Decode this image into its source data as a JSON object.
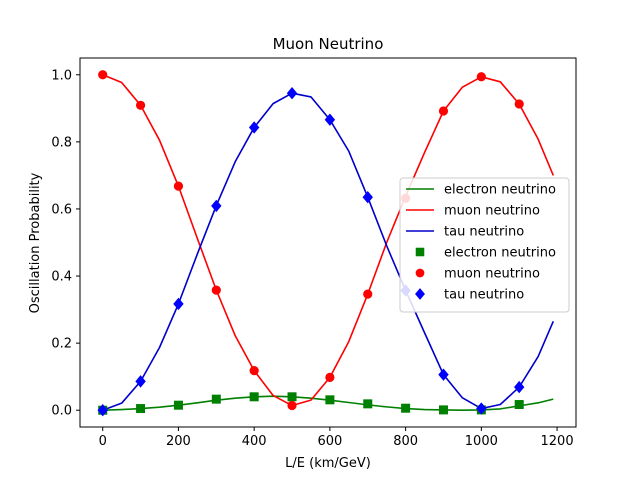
{
  "chart_data": {
    "type": "line",
    "title": "Muon Neutrino",
    "xlabel": "L/E (km/GeV)",
    "ylabel": "Oscillation Probability",
    "xlim": [
      -60,
      1250
    ],
    "ylim": [
      -0.05,
      1.05
    ],
    "xticks": [
      0,
      200,
      400,
      600,
      800,
      1000,
      1200
    ],
    "yticks": [
      0.0,
      0.2,
      0.4,
      0.6,
      0.8,
      1.0
    ],
    "legend_position": "center-right",
    "grid": false,
    "series": [
      {
        "name": "electron neutrino",
        "kind": "line",
        "color": "#008000",
        "x": [
          0,
          50,
          100,
          150,
          200,
          250,
          300,
          350,
          400,
          450,
          500,
          550,
          600,
          650,
          700,
          750,
          800,
          850,
          900,
          950,
          1000,
          1050,
          1100,
          1150,
          1190
        ],
        "y": [
          0.0,
          0.002,
          0.005,
          0.009,
          0.015,
          0.022,
          0.03,
          0.036,
          0.04,
          0.042,
          0.04,
          0.036,
          0.03,
          0.023,
          0.016,
          0.01,
          0.005,
          0.002,
          0.001,
          0.0,
          0.001,
          0.004,
          0.013,
          0.022,
          0.033
        ]
      },
      {
        "name": "muon neutrino",
        "kind": "line",
        "color": "#ff0000",
        "x": [
          0,
          50,
          100,
          150,
          200,
          250,
          300,
          350,
          400,
          450,
          500,
          550,
          600,
          650,
          700,
          750,
          800,
          850,
          900,
          950,
          1000,
          1050,
          1100,
          1150,
          1190
        ],
        "y": [
          1.0,
          0.977,
          0.909,
          0.805,
          0.668,
          0.512,
          0.358,
          0.222,
          0.118,
          0.044,
          0.014,
          0.03,
          0.098,
          0.205,
          0.346,
          0.5,
          0.638,
          0.768,
          0.892,
          0.963,
          0.994,
          0.979,
          0.913,
          0.808,
          0.7
        ]
      },
      {
        "name": "tau neutrino",
        "kind": "line",
        "color": "#0000cc",
        "x": [
          0,
          50,
          100,
          150,
          200,
          250,
          300,
          350,
          400,
          450,
          500,
          550,
          600,
          650,
          700,
          750,
          800,
          850,
          900,
          950,
          1000,
          1050,
          1100,
          1150,
          1190
        ],
        "y": [
          0.0,
          0.021,
          0.086,
          0.187,
          0.317,
          0.466,
          0.61,
          0.741,
          0.843,
          0.914,
          0.945,
          0.934,
          0.866,
          0.772,
          0.635,
          0.49,
          0.357,
          0.231,
          0.106,
          0.037,
          0.005,
          0.017,
          0.069,
          0.16,
          0.265
        ]
      },
      {
        "name": "electron neutrino",
        "kind": "marker",
        "marker": "square",
        "color": "#008000",
        "x": [
          0,
          100,
          200,
          300,
          400,
          500,
          600,
          700,
          800,
          900,
          1000,
          1100
        ],
        "y": [
          0.0,
          0.005,
          0.015,
          0.033,
          0.04,
          0.04,
          0.031,
          0.019,
          0.006,
          0.001,
          0.001,
          0.017
        ]
      },
      {
        "name": "muon neutrino",
        "kind": "marker",
        "marker": "circle",
        "color": "#ff0000",
        "x": [
          0,
          100,
          200,
          300,
          400,
          500,
          600,
          700,
          800,
          900,
          1000,
          1100
        ],
        "y": [
          1.0,
          0.909,
          0.668,
          0.358,
          0.118,
          0.014,
          0.098,
          0.346,
          0.632,
          0.892,
          0.994,
          0.913
        ]
      },
      {
        "name": "tau neutrino",
        "kind": "marker",
        "marker": "diamond",
        "color": "#0000ff",
        "x": [
          0,
          100,
          200,
          300,
          400,
          500,
          600,
          700,
          800,
          900,
          1000,
          1100
        ],
        "y": [
          0.0,
          0.086,
          0.317,
          0.609,
          0.843,
          0.945,
          0.866,
          0.635,
          0.357,
          0.106,
          0.005,
          0.069
        ]
      }
    ]
  }
}
